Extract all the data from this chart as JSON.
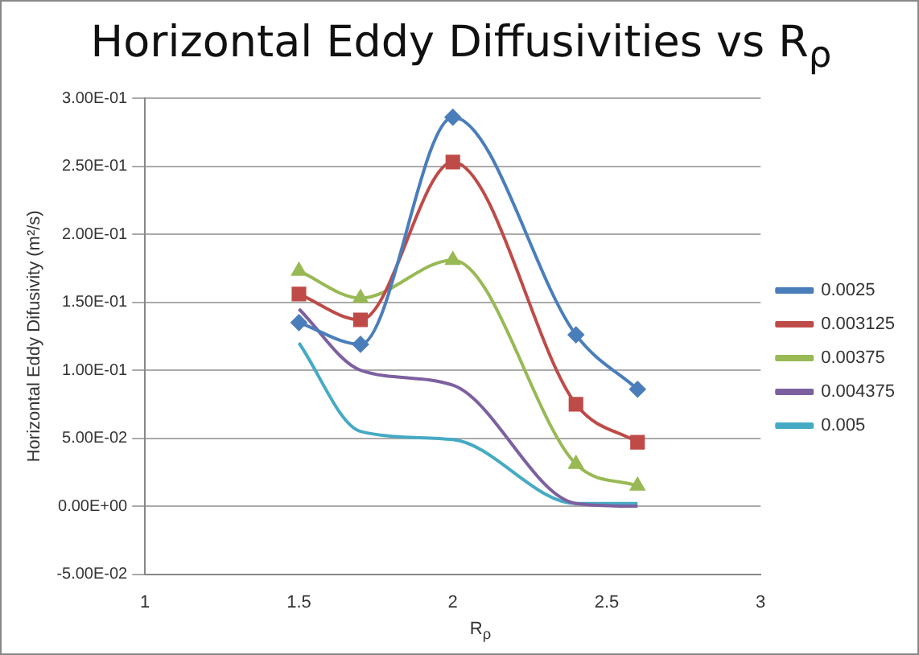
{
  "chart_data": {
    "type": "line",
    "title": "Horizontal Eddy Diffusivities vs R$_{ρ}$",
    "xlabel": "R$_{ρ}$",
    "ylabel": "Horizontal Eddy Difusivity (m²/s)",
    "x": [
      1.5,
      1.7,
      2.0,
      2.4,
      2.6
    ],
    "series": [
      {
        "name": "0.0025",
        "color": "#4a7ebb",
        "marker": "diamond",
        "values": [
          0.135,
          0.119,
          0.286,
          0.126,
          0.086
        ]
      },
      {
        "name": "0.003125",
        "color": "#be4b48",
        "marker": "square",
        "values": [
          0.156,
          0.137,
          0.253,
          0.075,
          0.047
        ]
      },
      {
        "name": "0.00375",
        "color": "#98b954",
        "marker": "triangle",
        "values": [
          0.173,
          0.153,
          0.181,
          0.031,
          0.015
        ]
      },
      {
        "name": "0.004375",
        "color": "#7d60a0",
        "marker": "none",
        "values": [
          0.145,
          0.1,
          0.089,
          0.002,
          0
        ]
      },
      {
        "name": "0.005",
        "color": "#46aac5",
        "marker": "none",
        "values": [
          0.12,
          0.055,
          0.049,
          0.002,
          0.002
        ]
      }
    ],
    "xlim": [
      1,
      3
    ],
    "xticks": [
      1,
      1.5,
      2,
      2.5,
      3
    ],
    "ylim": [
      -0.05,
      0.3
    ],
    "yticks": [
      {
        "value": -0.05,
        "label": "-5.00E-02"
      },
      {
        "value": 0,
        "label": "0.00E+00"
      },
      {
        "value": 0.05,
        "label": "5.00E-02"
      },
      {
        "value": 0.1,
        "label": "1.00E-01"
      },
      {
        "value": 0.15,
        "label": "1.50E-01"
      },
      {
        "value": 0.2,
        "label": "2.00E-01"
      },
      {
        "value": 0.25,
        "label": "2.50E-01"
      },
      {
        "value": 0.3,
        "label": "3.00E-01"
      }
    ],
    "grid": "y",
    "legend": "right"
  }
}
